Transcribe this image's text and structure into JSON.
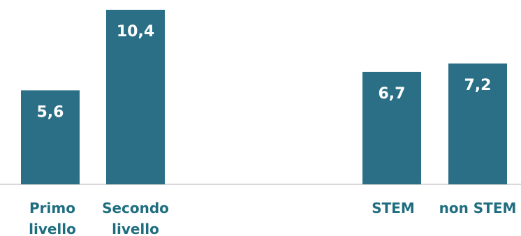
{
  "chart_data": {
    "type": "bar",
    "categories": [
      [
        "Primo",
        "livello"
      ],
      [
        "Secondo",
        "livello"
      ],
      [
        "STEM"
      ],
      [
        "non STEM"
      ]
    ],
    "values": [
      5.6,
      10.4,
      6.7,
      7.2
    ],
    "value_labels": [
      "5,6",
      "10,4",
      "6,7",
      "7,2"
    ],
    "groups": [
      [
        0,
        1
      ],
      [
        2,
        3
      ]
    ],
    "bar_color": "#2a6f86",
    "label_color": "#1f6e80",
    "baseline_color": "#cccccc",
    "title": "",
    "xlabel": "",
    "ylabel": "",
    "ylim": [
      0,
      10.4
    ],
    "grid": false,
    "legend": "none"
  }
}
